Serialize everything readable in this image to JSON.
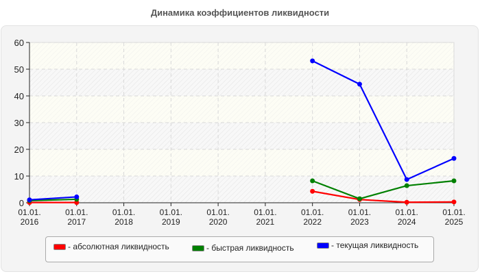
{
  "title": "Динамика коэффициентов ликвидности",
  "chart_data": {
    "type": "line",
    "title": "Динамика коэффициентов ликвидности",
    "xlabel": "",
    "ylabel": "",
    "x": [
      "01.01.2016",
      "01.01.2017",
      "01.01.2018",
      "01.01.2019",
      "01.01.2020",
      "01.01.2021",
      "01.01.2022",
      "01.01.2023",
      "01.01.2024",
      "01.01.2025"
    ],
    "x_tick_labels": [
      [
        "01.01.",
        "2016"
      ],
      [
        "01.01.",
        "2017"
      ],
      [
        "01.01.",
        "2018"
      ],
      [
        "01.01.",
        "2019"
      ],
      [
        "01.01.",
        "2020"
      ],
      [
        "01.01.",
        "2021"
      ],
      [
        "01.01.",
        "2022"
      ],
      [
        "01.01.",
        "2023"
      ],
      [
        "01.01.",
        "2024"
      ],
      [
        "01.01.",
        "2025"
      ]
    ],
    "ylim": [
      0,
      60
    ],
    "y_ticks": [
      0,
      10,
      20,
      30,
      40,
      50,
      60
    ],
    "grid": true,
    "legend_position": "bottom",
    "series": [
      {
        "name": "абсолютная ликвидность",
        "color": "#ff0000",
        "values": [
          0.1,
          0.1,
          null,
          null,
          null,
          null,
          4.3,
          1.2,
          0.2,
          0.3
        ]
      },
      {
        "name": "быстрая ликвидность",
        "color": "#008000",
        "values": [
          0.8,
          1.3,
          null,
          null,
          null,
          null,
          8.2,
          1.5,
          6.4,
          8.2
        ]
      },
      {
        "name": "текущая ликвидность",
        "color": "#0000ff",
        "values": [
          1.1,
          2.2,
          null,
          null,
          null,
          null,
          53.1,
          44.4,
          8.7,
          16.6
        ]
      }
    ]
  },
  "legend": {
    "items": [
      {
        "label": "- абсолютная ликвидность",
        "color": "#ff0000"
      },
      {
        "label": "- быстрая ликвидность",
        "color": "#008000"
      },
      {
        "label": "- текущая ликвидность",
        "color": "#0000ff"
      }
    ]
  }
}
